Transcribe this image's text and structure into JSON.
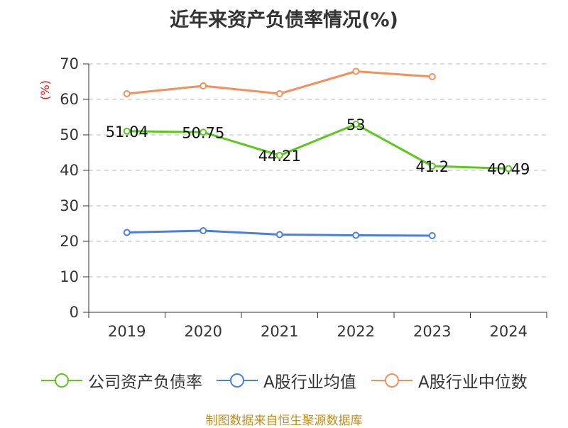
{
  "title": "近年来资产负债率情况(%)",
  "unit": "(%)",
  "source": "制图数据来自恒生聚源数据库",
  "chart_data": {
    "type": "line",
    "title": "近年来资产负债率情况(%)",
    "ylabel": "(%)",
    "xlabel": "",
    "ylim": [
      0,
      70
    ],
    "yticks": [
      0,
      10,
      20,
      30,
      40,
      50,
      60,
      70
    ],
    "grid": true,
    "legend_position": "bottom",
    "categories": [
      "2019",
      "2020",
      "2021",
      "2022",
      "2023",
      "2024"
    ],
    "series": [
      {
        "name": "公司资产负债率",
        "color": "#5cc81e",
        "values": [
          51.04,
          50.75,
          44.21,
          53,
          41.2,
          40.49
        ],
        "labels": [
          "51.04",
          "50.75",
          "44.21",
          "53",
          "41.2",
          "40.49"
        ]
      },
      {
        "name": "A股行业均值",
        "color": "#4a7fdf",
        "values": [
          22.5,
          23.0,
          21.9,
          21.7,
          21.6,
          null
        ]
      },
      {
        "name": "A股行业中位数",
        "color": "#f58f5a",
        "values": [
          61.6,
          63.8,
          61.6,
          67.9,
          66.4,
          null
        ]
      }
    ]
  }
}
